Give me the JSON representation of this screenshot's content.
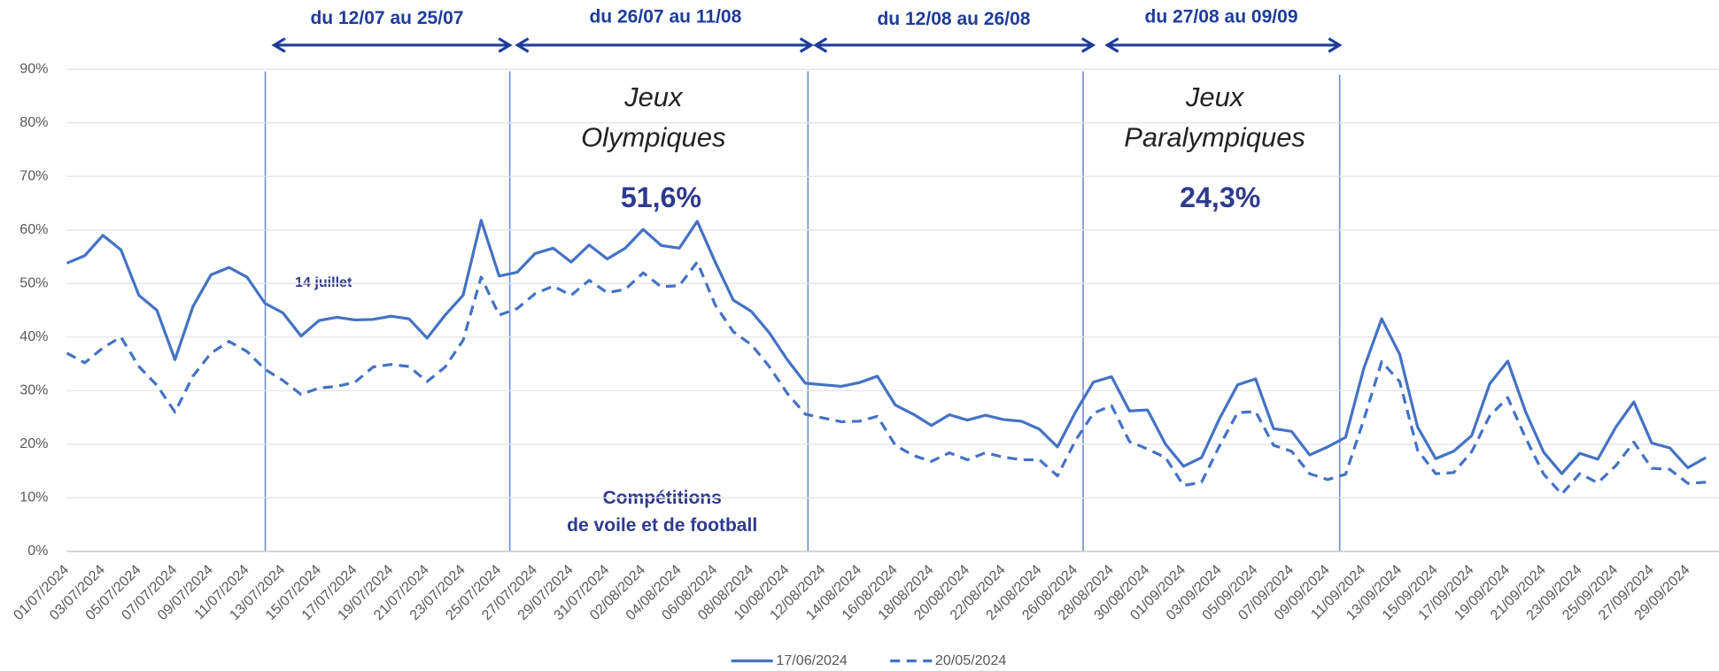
{
  "chart_data": {
    "type": "line",
    "categories": [
      "01/07/2024",
      null,
      "03/07/2024",
      null,
      "05/07/2024",
      null,
      "07/07/2024",
      null,
      "09/07/2024",
      null,
      "11/07/2024",
      null,
      "13/07/2024",
      null,
      "15/07/2024",
      null,
      "17/07/2024",
      null,
      "19/07/2024",
      null,
      "21/07/2024",
      null,
      "23/07/2024",
      null,
      "25/07/2024",
      null,
      "27/07/2024",
      null,
      "29/07/2024",
      null,
      "31/07/2024",
      null,
      "02/08/2024",
      null,
      "04/08/2024",
      null,
      "06/08/2024",
      null,
      "08/08/2024",
      null,
      "10/08/2024",
      null,
      "12/08/2024",
      null,
      "14/08/2024",
      null,
      "16/08/2024",
      null,
      "18/08/2024",
      null,
      "20/08/2024",
      null,
      "22/08/2024",
      null,
      "24/08/2024",
      null,
      "26/08/2024",
      null,
      "28/08/2024",
      null,
      "30/08/2024",
      null,
      "01/09/2024",
      null,
      "03/09/2024",
      null,
      "05/09/2024",
      null,
      "07/09/2024",
      null,
      "09/09/2024",
      null,
      "11/09/2024",
      null,
      "13/09/2024",
      null,
      "15/09/2024",
      null,
      "17/09/2024",
      null,
      "19/09/2024",
      null,
      "21/09/2024",
      null,
      "23/09/2024",
      null,
      "25/09/2024",
      null,
      "27/09/2024",
      null,
      "29/09/2024",
      null
    ],
    "series": [
      {
        "name": "17/06/2024",
        "color": "#4472c4",
        "dash": false,
        "values": [
          53.8,
          55.2,
          59,
          56.3,
          47.8,
          45,
          35.8,
          45.7,
          51.6,
          53,
          51.2,
          46.3,
          44.5,
          40.2,
          43.1,
          43.7,
          43.2,
          43.3,
          43.9,
          43.4,
          39.8,
          44.1,
          47.8,
          61.8,
          51.4,
          52.1,
          55.6,
          56.6,
          54,
          57.2,
          54.6,
          56.6,
          60.1,
          57.1,
          56.6,
          61.6,
          54,
          46.9,
          44.8,
          40.8,
          35.8,
          31.4,
          31.1,
          30.8,
          31.5,
          32.7,
          27.3,
          25.6,
          23.5,
          25.5,
          24.5,
          25.4,
          24.6,
          24.3,
          22.8,
          19.5,
          26,
          31.6,
          32.6,
          26.2,
          26.4,
          20,
          15.9,
          17.5,
          24.8,
          31.1,
          32.2,
          22.9,
          22.4,
          18,
          19.5,
          21.3,
          34.1,
          43.4,
          36.8,
          23.2,
          17.3,
          18.7,
          21.6,
          31.3,
          35.5,
          26,
          18.5,
          14.5,
          18.3,
          17.2,
          23.2,
          27.9,
          20.2,
          19.3,
          15.6,
          17.5
        ]
      },
      {
        "name": "20/05/2024",
        "color": "#4472c4",
        "dash": true,
        "values": [
          37,
          35.2,
          38,
          40,
          34.5,
          31,
          26,
          32.7,
          37,
          39.2,
          37.3,
          34,
          31.9,
          29.3,
          30.5,
          30.8,
          31.6,
          34.4,
          34.9,
          34.5,
          31.7,
          34.4,
          39.4,
          51.2,
          44.1,
          45.3,
          48.1,
          49.5,
          47.8,
          50.6,
          48.3,
          48.9,
          52,
          49.4,
          49.6,
          54,
          46,
          41,
          38.6,
          34.5,
          29.5,
          25.6,
          24.9,
          24.2,
          24.3,
          25.2,
          19.8,
          17.9,
          16.8,
          18.4,
          17.1,
          18.4,
          17.6,
          17.1,
          17.1,
          14.1,
          20.7,
          25.8,
          27.2,
          20.5,
          19.1,
          17.5,
          12.3,
          12.9,
          19.7,
          25.9,
          26.1,
          19.8,
          18.7,
          14.5,
          13.4,
          14.4,
          24.5,
          35.4,
          31.7,
          18.9,
          14.5,
          14.7,
          18.6,
          25.3,
          28.7,
          21.1,
          14.4,
          10.7,
          14.5,
          12.8,
          16,
          20.4,
          15.5,
          15.3,
          12.7,
          12.9
        ]
      }
    ],
    "ylim": [
      0,
      90
    ],
    "yticks": [
      {
        "value": 0,
        "label": "0%"
      },
      {
        "value": 10,
        "label": "10%"
      },
      {
        "value": 20,
        "label": "20%"
      },
      {
        "value": 30,
        "label": "30%"
      },
      {
        "value": 40,
        "label": "40%"
      },
      {
        "value": 50,
        "label": "50%"
      },
      {
        "value": 60,
        "label": "60%"
      },
      {
        "value": 70,
        "label": "70%"
      },
      {
        "value": 80,
        "label": "80%"
      },
      {
        "value": 90,
        "label": "90%"
      }
    ],
    "grid": true,
    "periods": [
      "du 12/07 au 25/07",
      "du 26/07 au 11/08",
      "du 12/08 au 26/08",
      "du 27/08 au 09/09"
    ],
    "annotations": [
      "Jeux",
      "Olympiques",
      "51,6%",
      "Jeux",
      "Paralympiques",
      "24,3%",
      "14 juillet",
      "Compétitions",
      "de voile et de football"
    ]
  }
}
